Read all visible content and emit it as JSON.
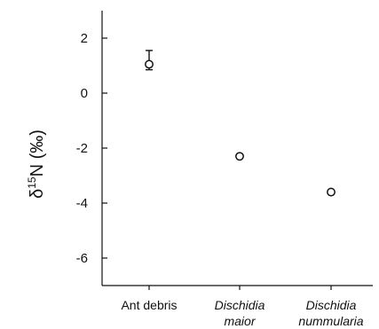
{
  "chart_data": {
    "type": "scatter",
    "categories": [
      {
        "lines": [
          "Ant debris"
        ],
        "italic": false
      },
      {
        "lines": [
          "Dischidia",
          "maior"
        ],
        "italic": true
      },
      {
        "lines": [
          "Dischidia",
          "nummularia"
        ],
        "italic": true
      }
    ],
    "points": [
      {
        "category": "Ant debris",
        "y": 1.05,
        "err_low": 0.85,
        "err_high": 1.55
      },
      {
        "category": "Dischidia maior",
        "y": -2.3
      },
      {
        "category": "Dischidia nummularia",
        "y": -3.6
      }
    ],
    "ylabel": {
      "prefix": "δ",
      "superscript": "15",
      "main": "N (‰)"
    },
    "ylim": [
      -7,
      3
    ],
    "yticks": [
      2,
      0,
      -2,
      -4,
      -6
    ],
    "ytick_labels": [
      "2",
      "0",
      "-2",
      "-4",
      "-6"
    ],
    "grid": false,
    "marker": "open-circle",
    "colors": {
      "axis": "#111111",
      "marker": "#111111",
      "background": "#ffffff"
    }
  }
}
